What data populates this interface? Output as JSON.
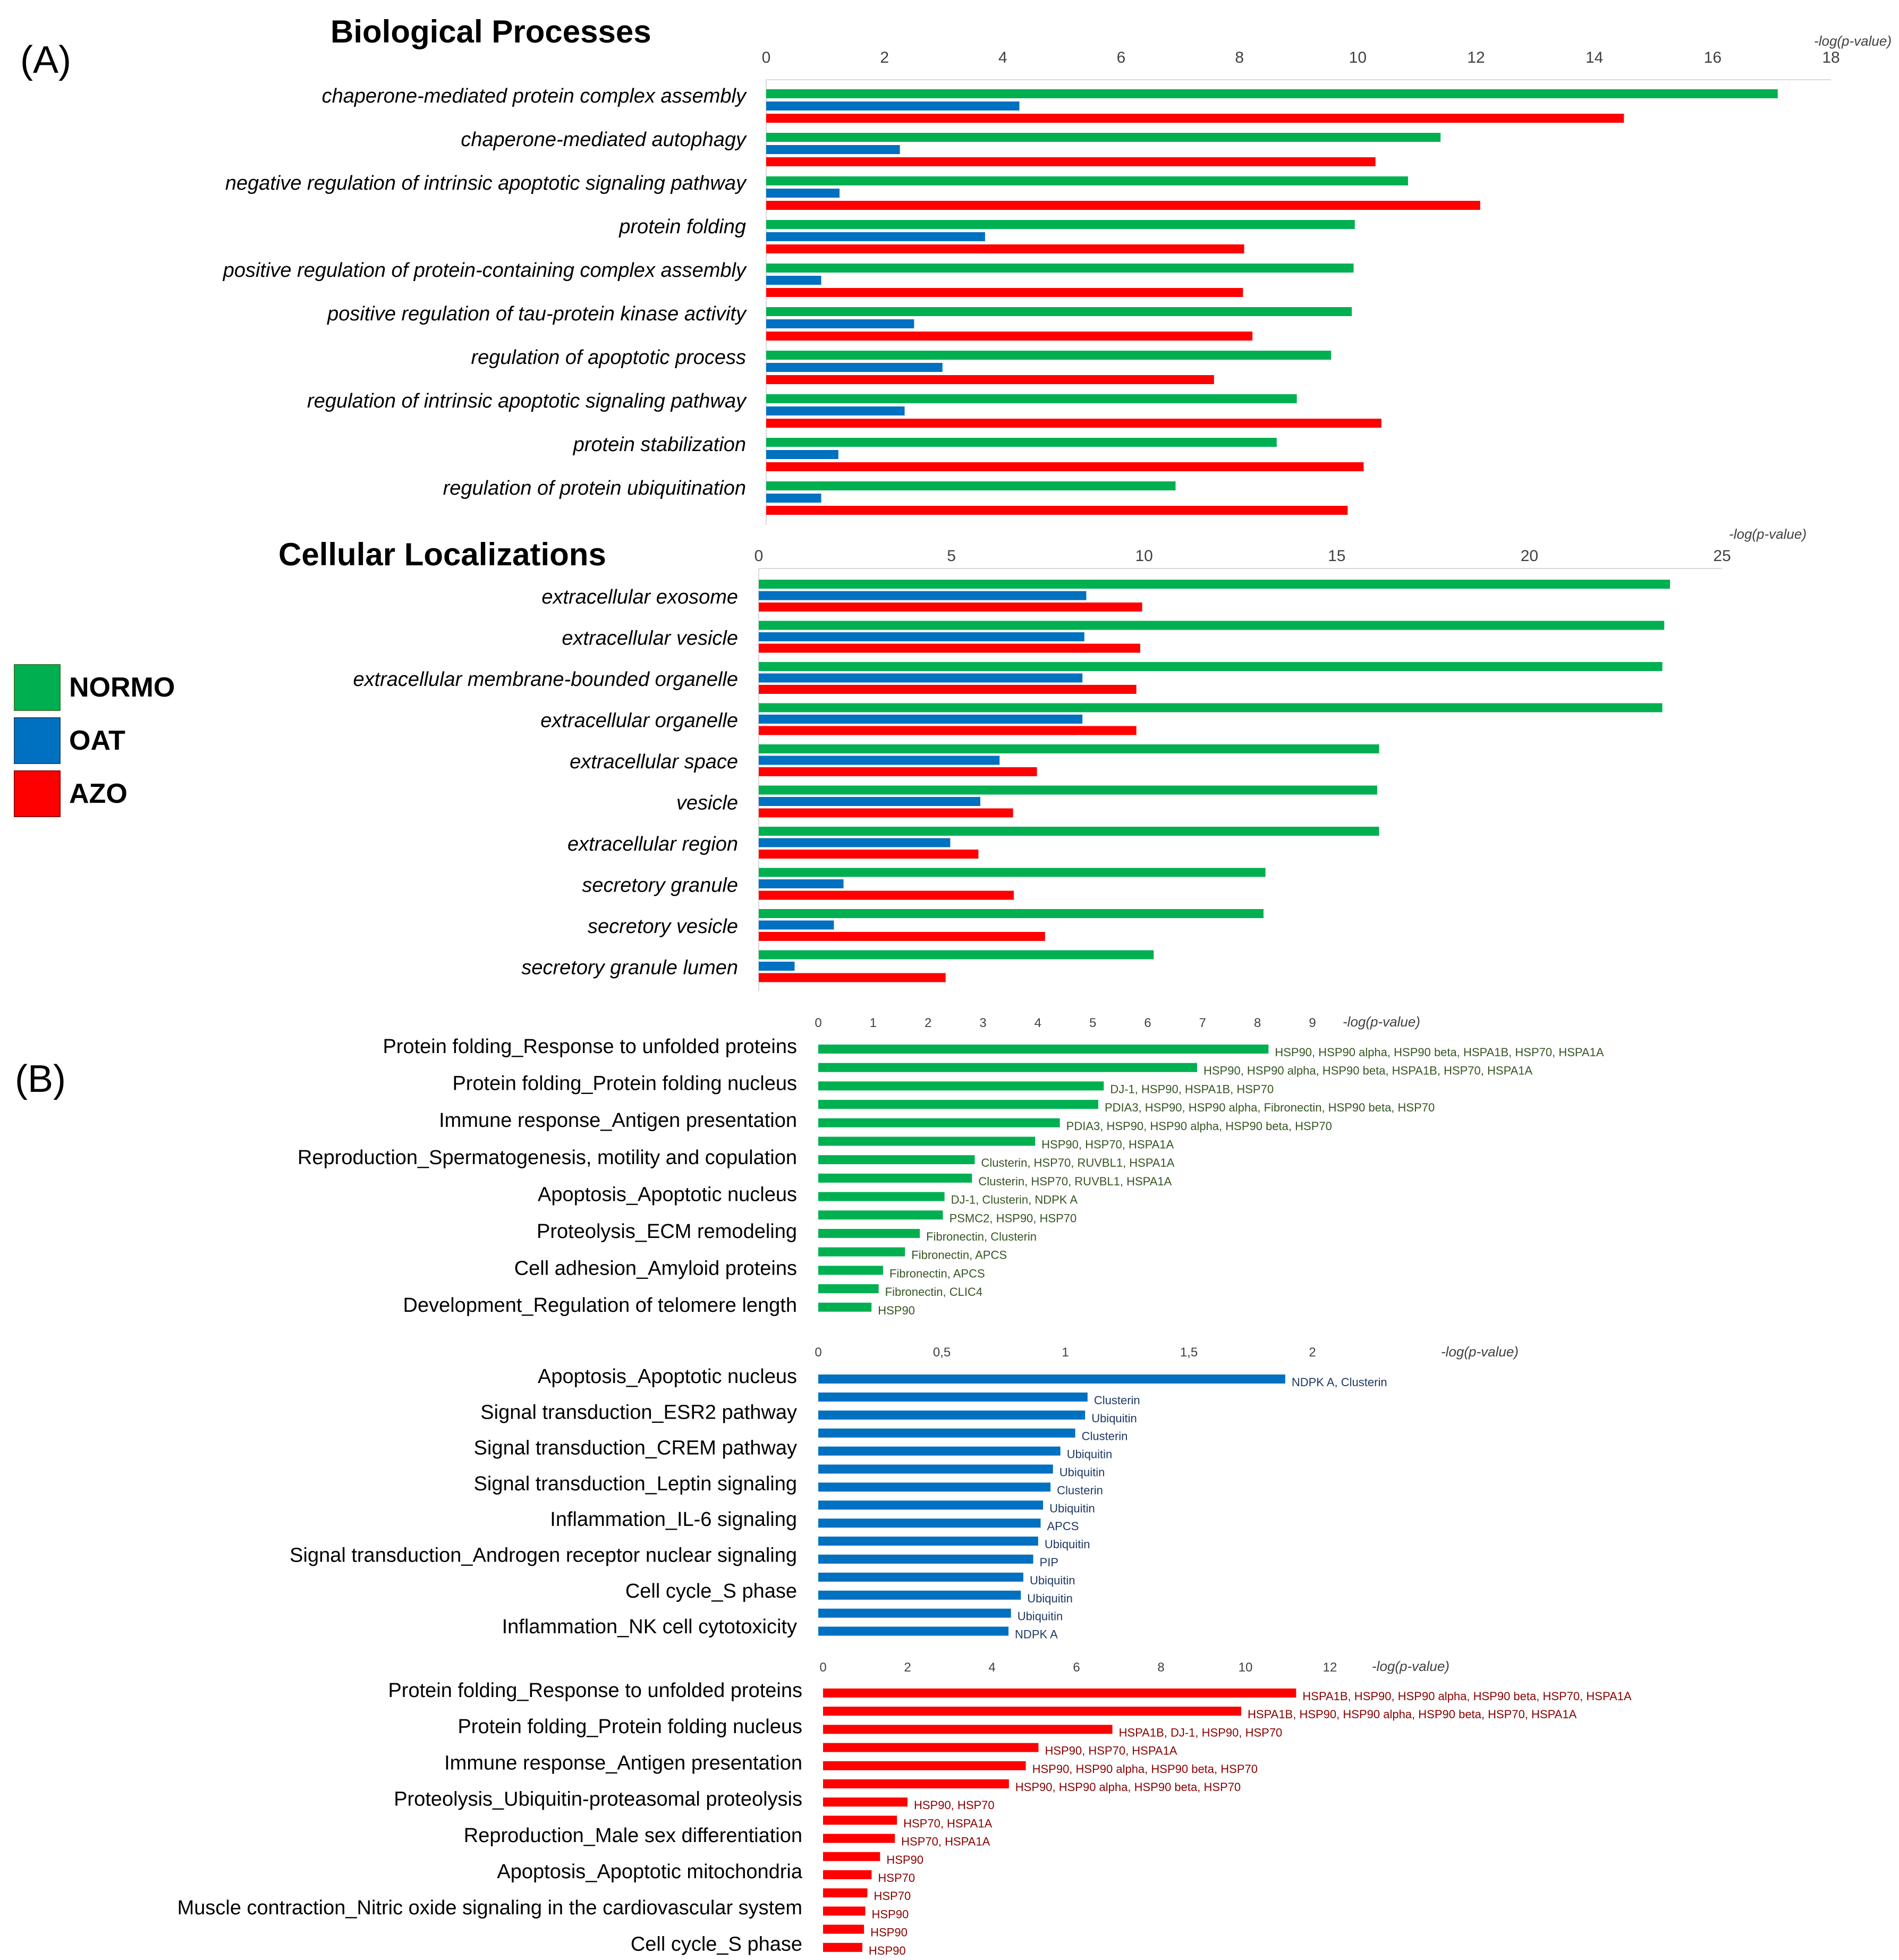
{
  "panel_labels": {
    "a": "(A)",
    "b": "(B)"
  },
  "colors": {
    "normo": "#00B050",
    "oat": "#0070C0",
    "azo": "#FF0000",
    "axis": "#404040",
    "normo_text": "#375623",
    "oat_text": "#1F3864",
    "azo_text": "#8B0000"
  },
  "legend": [
    {
      "label": "NORMO",
      "color": "#00B050"
    },
    {
      "label": "OAT",
      "color": "#0070C0"
    },
    {
      "label": "AZO",
      "color": "#FF0000"
    }
  ],
  "chart_data": [
    {
      "id": "bp",
      "type": "bar",
      "orientation": "horizontal",
      "title": "Biological Processes",
      "xlabel": "-log(p-value)",
      "xlim": [
        0,
        18
      ],
      "ticks": [
        0,
        2,
        4,
        6,
        8,
        10,
        12,
        14,
        16,
        18
      ],
      "tick_labels": [
        "0",
        "2",
        "4",
        "6",
        "8",
        "10",
        "12",
        "14",
        "16",
        "18"
      ],
      "categories": [
        "chaperone-mediated protein complex assembly",
        "chaperone-mediated autophagy",
        "negative regulation of intrinsic apoptotic signaling pathway",
        "protein folding",
        "positive regulation of protein-containing complex assembly",
        "positive regulation of tau-protein kinase activity",
        "regulation of apoptotic process",
        "regulation of intrinsic apoptotic signaling pathway",
        "protein stabilization",
        "regulation of protein ubiquitination"
      ],
      "series": [
        {
          "name": "NORMO",
          "values": [
            17.1,
            11.4,
            10.85,
            9.95,
            9.93,
            9.9,
            9.55,
            8.97,
            8.63,
            6.92
          ]
        },
        {
          "name": "OAT",
          "values": [
            4.28,
            2.26,
            1.24,
            3.7,
            0.93,
            2.5,
            2.98,
            2.34,
            1.22,
            0.93
          ]
        },
        {
          "name": "AZO",
          "values": [
            14.5,
            10.3,
            12.07,
            8.08,
            8.06,
            8.22,
            7.57,
            10.4,
            10.1,
            9.83
          ]
        }
      ]
    },
    {
      "id": "cl",
      "type": "bar",
      "orientation": "horizontal",
      "title": "Cellular Localizations",
      "xlabel": "-log(p-value)",
      "xlim": [
        0,
        25
      ],
      "ticks": [
        0,
        5,
        10,
        15,
        20,
        25
      ],
      "tick_labels": [
        "0",
        "5",
        "10",
        "15",
        "20",
        "25"
      ],
      "categories": [
        "extracellular exosome",
        "extracellular vesicle",
        "extracellular membrane-bounded organelle",
        "extracellular organelle",
        "extracellular space",
        "vesicle",
        "extracellular region",
        "secretory granule",
        "secretory vesicle",
        "secretory granule lumen"
      ],
      "series": [
        {
          "name": "NORMO",
          "values": [
            23.65,
            23.5,
            23.45,
            23.45,
            16.1,
            16.05,
            16.1,
            13.15,
            13.1,
            10.25
          ]
        },
        {
          "name": "OAT",
          "values": [
            8.5,
            8.45,
            8.4,
            8.4,
            6.25,
            5.75,
            4.97,
            2.2,
            1.95,
            0.93
          ]
        },
        {
          "name": "AZO",
          "values": [
            9.95,
            9.9,
            9.8,
            9.8,
            7.22,
            6.6,
            5.7,
            6.62,
            7.43,
            4.85
          ]
        }
      ]
    },
    {
      "id": "b_normo",
      "type": "bar",
      "orientation": "horizontal",
      "title": "",
      "xlabel": "-log(p-value)",
      "xlim": [
        0,
        9
      ],
      "ticks": [
        0,
        1,
        2,
        3,
        4,
        5,
        6,
        7,
        8,
        9
      ],
      "tick_labels": [
        "0",
        "1",
        "2",
        "3",
        "4",
        "5",
        "6",
        "7",
        "8",
        "9"
      ],
      "categories": [
        "Protein folding_Response to unfolded proteins",
        "Protein folding_Protein folding nucleus",
        "Immune response_Antigen presentation",
        "Reproduction_Spermatogenesis, motility and copulation",
        "Apoptosis_Apoptotic nucleus",
        "Proteolysis_ECM remodeling",
        "Cell adhesion_Amyloid proteins",
        "Development_Regulation of telomere length"
      ],
      "bars": [
        {
          "value": 8.2,
          "label": "HSP90, HSP90 alpha, HSP90 beta, HSPA1B, HSP70, HSPA1A"
        },
        {
          "value": 6.9,
          "label": "HSP90, HSP90 alpha, HSP90 beta, HSPA1B, HSP70, HSPA1A"
        },
        {
          "value": 5.2,
          "label": "DJ-1, HSP90, HSPA1B, HSP70"
        },
        {
          "value": 5.1,
          "label": "PDIA3, HSP90, HSP90 alpha, Fibronectin, HSP90 beta, HSP70"
        },
        {
          "value": 4.4,
          "label": "PDIA3, HSP90, HSP90 alpha, HSP90 beta, HSP70"
        },
        {
          "value": 3.95,
          "label": "HSP90, HSP70, HSPA1A"
        },
        {
          "value": 2.85,
          "label": "Clusterin, HSP70, RUVBL1, HSPA1A"
        },
        {
          "value": 2.8,
          "label": "Clusterin, HSP70, RUVBL1, HSPA1A"
        },
        {
          "value": 2.3,
          "label": "DJ-1, Clusterin, NDPK A"
        },
        {
          "value": 2.27,
          "label": "PSMC2, HSP90, HSP70"
        },
        {
          "value": 1.85,
          "label": "Fibronectin, Clusterin"
        },
        {
          "value": 1.58,
          "label": "Fibronectin, APCS"
        },
        {
          "value": 1.18,
          "label": "Fibronectin, APCS"
        },
        {
          "value": 1.1,
          "label": "Fibronectin, CLIC4"
        },
        {
          "value": 0.97,
          "label": "HSP90"
        }
      ]
    },
    {
      "id": "b_oat",
      "type": "bar",
      "orientation": "horizontal",
      "title": "",
      "xlabel": "-log(p-value)",
      "xlim": [
        0,
        2
      ],
      "ticks": [
        0,
        0.5,
        1,
        1.5,
        2
      ],
      "tick_labels": [
        "0",
        "0,5",
        "1",
        "1,5",
        "2"
      ],
      "categories": [
        "Apoptosis_Apoptotic nucleus",
        "Signal transduction_ESR2 pathway",
        "Signal transduction_CREM pathway",
        "Signal transduction_Leptin signaling",
        "Inflammation_IL-6 signaling",
        "Signal transduction_Androgen receptor nuclear signaling",
        "Cell cycle_S phase",
        "Inflammation_NK cell cytotoxicity"
      ],
      "bars": [
        {
          "value": 1.89,
          "label": "NDPK A, Clusterin"
        },
        {
          "value": 1.09,
          "label": "Clusterin"
        },
        {
          "value": 1.08,
          "label": "Ubiquitin"
        },
        {
          "value": 1.04,
          "label": "Clusterin"
        },
        {
          "value": 0.98,
          "label": "Ubiquitin"
        },
        {
          "value": 0.95,
          "label": "Ubiquitin"
        },
        {
          "value": 0.94,
          "label": "Clusterin"
        },
        {
          "value": 0.91,
          "label": "Ubiquitin"
        },
        {
          "value": 0.9,
          "label": "APCS"
        },
        {
          "value": 0.89,
          "label": "Ubiquitin"
        },
        {
          "value": 0.87,
          "label": "PIP"
        },
        {
          "value": 0.83,
          "label": "Ubiquitin"
        },
        {
          "value": 0.82,
          "label": "Ubiquitin"
        },
        {
          "value": 0.78,
          "label": "Ubiquitin"
        },
        {
          "value": 0.77,
          "label": "NDPK A"
        }
      ]
    },
    {
      "id": "b_azo",
      "type": "bar",
      "orientation": "horizontal",
      "title": "",
      "xlabel": "-log(p-value)",
      "xlim": [
        0,
        12
      ],
      "ticks": [
        0,
        2,
        4,
        6,
        8,
        10,
        12
      ],
      "tick_labels": [
        "0",
        "2",
        "4",
        "6",
        "8",
        "10",
        "12"
      ],
      "categories": [
        "Protein folding_Response to unfolded proteins",
        "Protein folding_Protein folding nucleus",
        "Immune response_Antigen presentation",
        "Proteolysis_Ubiquitin-proteasomal proteolysis",
        "Reproduction_Male sex differentiation",
        "Apoptosis_Apoptotic mitochondria",
        "Muscle contraction_Nitric oxide signaling in the cardiovascular system",
        "Cell cycle_S phase"
      ],
      "bars": [
        {
          "value": 11.2,
          "label": "HSPA1B, HSP90, HSP90 alpha, HSP90 beta, HSP70, HSPA1A"
        },
        {
          "value": 9.9,
          "label": "HSPA1B, HSP90, HSP90 alpha, HSP90 beta, HSP70, HSPA1A"
        },
        {
          "value": 6.85,
          "label": "HSPA1B, DJ-1, HSP90, HSP70"
        },
        {
          "value": 5.1,
          "label": "HSP90, HSP70, HSPA1A"
        },
        {
          "value": 4.8,
          "label": "HSP90, HSP90 alpha, HSP90 beta, HSP70"
        },
        {
          "value": 4.4,
          "label": "HSP90, HSP90 alpha, HSP90 beta, HSP70"
        },
        {
          "value": 2.0,
          "label": "HSP90, HSP70"
        },
        {
          "value": 1.75,
          "label": "HSP70, HSPA1A"
        },
        {
          "value": 1.7,
          "label": "HSP70, HSPA1A"
        },
        {
          "value": 1.35,
          "label": "HSP90"
        },
        {
          "value": 1.15,
          "label": "HSP70"
        },
        {
          "value": 1.05,
          "label": "HSP70"
        },
        {
          "value": 1.0,
          "label": "HSP90"
        },
        {
          "value": 0.97,
          "label": "HSP90"
        },
        {
          "value": 0.93,
          "label": "HSP90"
        }
      ]
    }
  ]
}
